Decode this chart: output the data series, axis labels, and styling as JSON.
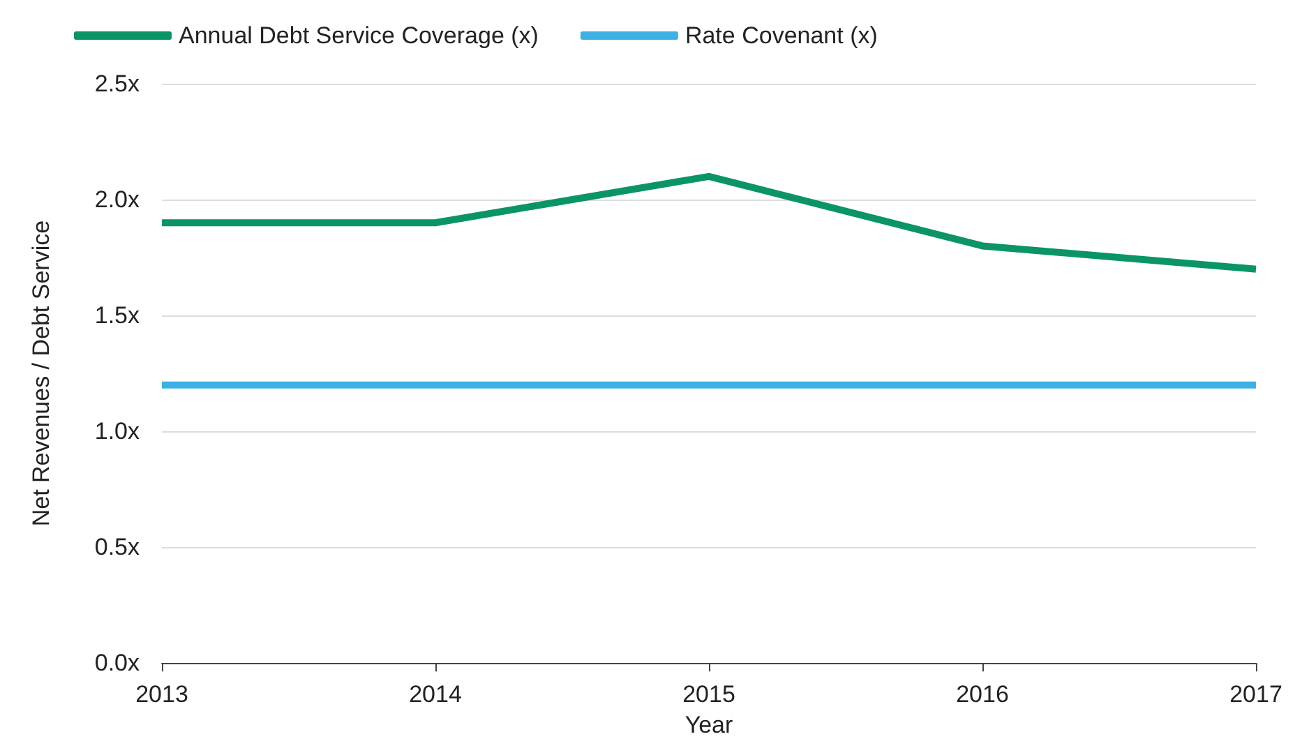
{
  "chart_data": {
    "type": "line",
    "xlabel": "Year",
    "ylabel": "Net Revenues / Debt Service",
    "categories": [
      "2013",
      "2014",
      "2015",
      "2016",
      "2017"
    ],
    "series": [
      {
        "name": "Annual Debt Service Coverage (x)",
        "color": "#0a9467",
        "values": [
          1.9,
          1.9,
          2.1,
          1.8,
          1.7
        ]
      },
      {
        "name": "Rate Covenant (x)",
        "color": "#3db1e3",
        "values": [
          1.2,
          1.2,
          1.2,
          1.2,
          1.2
        ]
      }
    ],
    "ylim": [
      0,
      2.5
    ],
    "yticks": [
      {
        "value": 0,
        "label": "0.0x"
      },
      {
        "value": 0.5,
        "label": "0.5x"
      },
      {
        "value": 1,
        "label": "1.0x"
      },
      {
        "value": 1.5,
        "label": "1.5x"
      },
      {
        "value": 2,
        "label": "2.0x"
      },
      {
        "value": 2.5,
        "label": "2.5x"
      }
    ],
    "grid": "y",
    "legend": "top left",
    "marker": "none",
    "line_style": "solid"
  }
}
